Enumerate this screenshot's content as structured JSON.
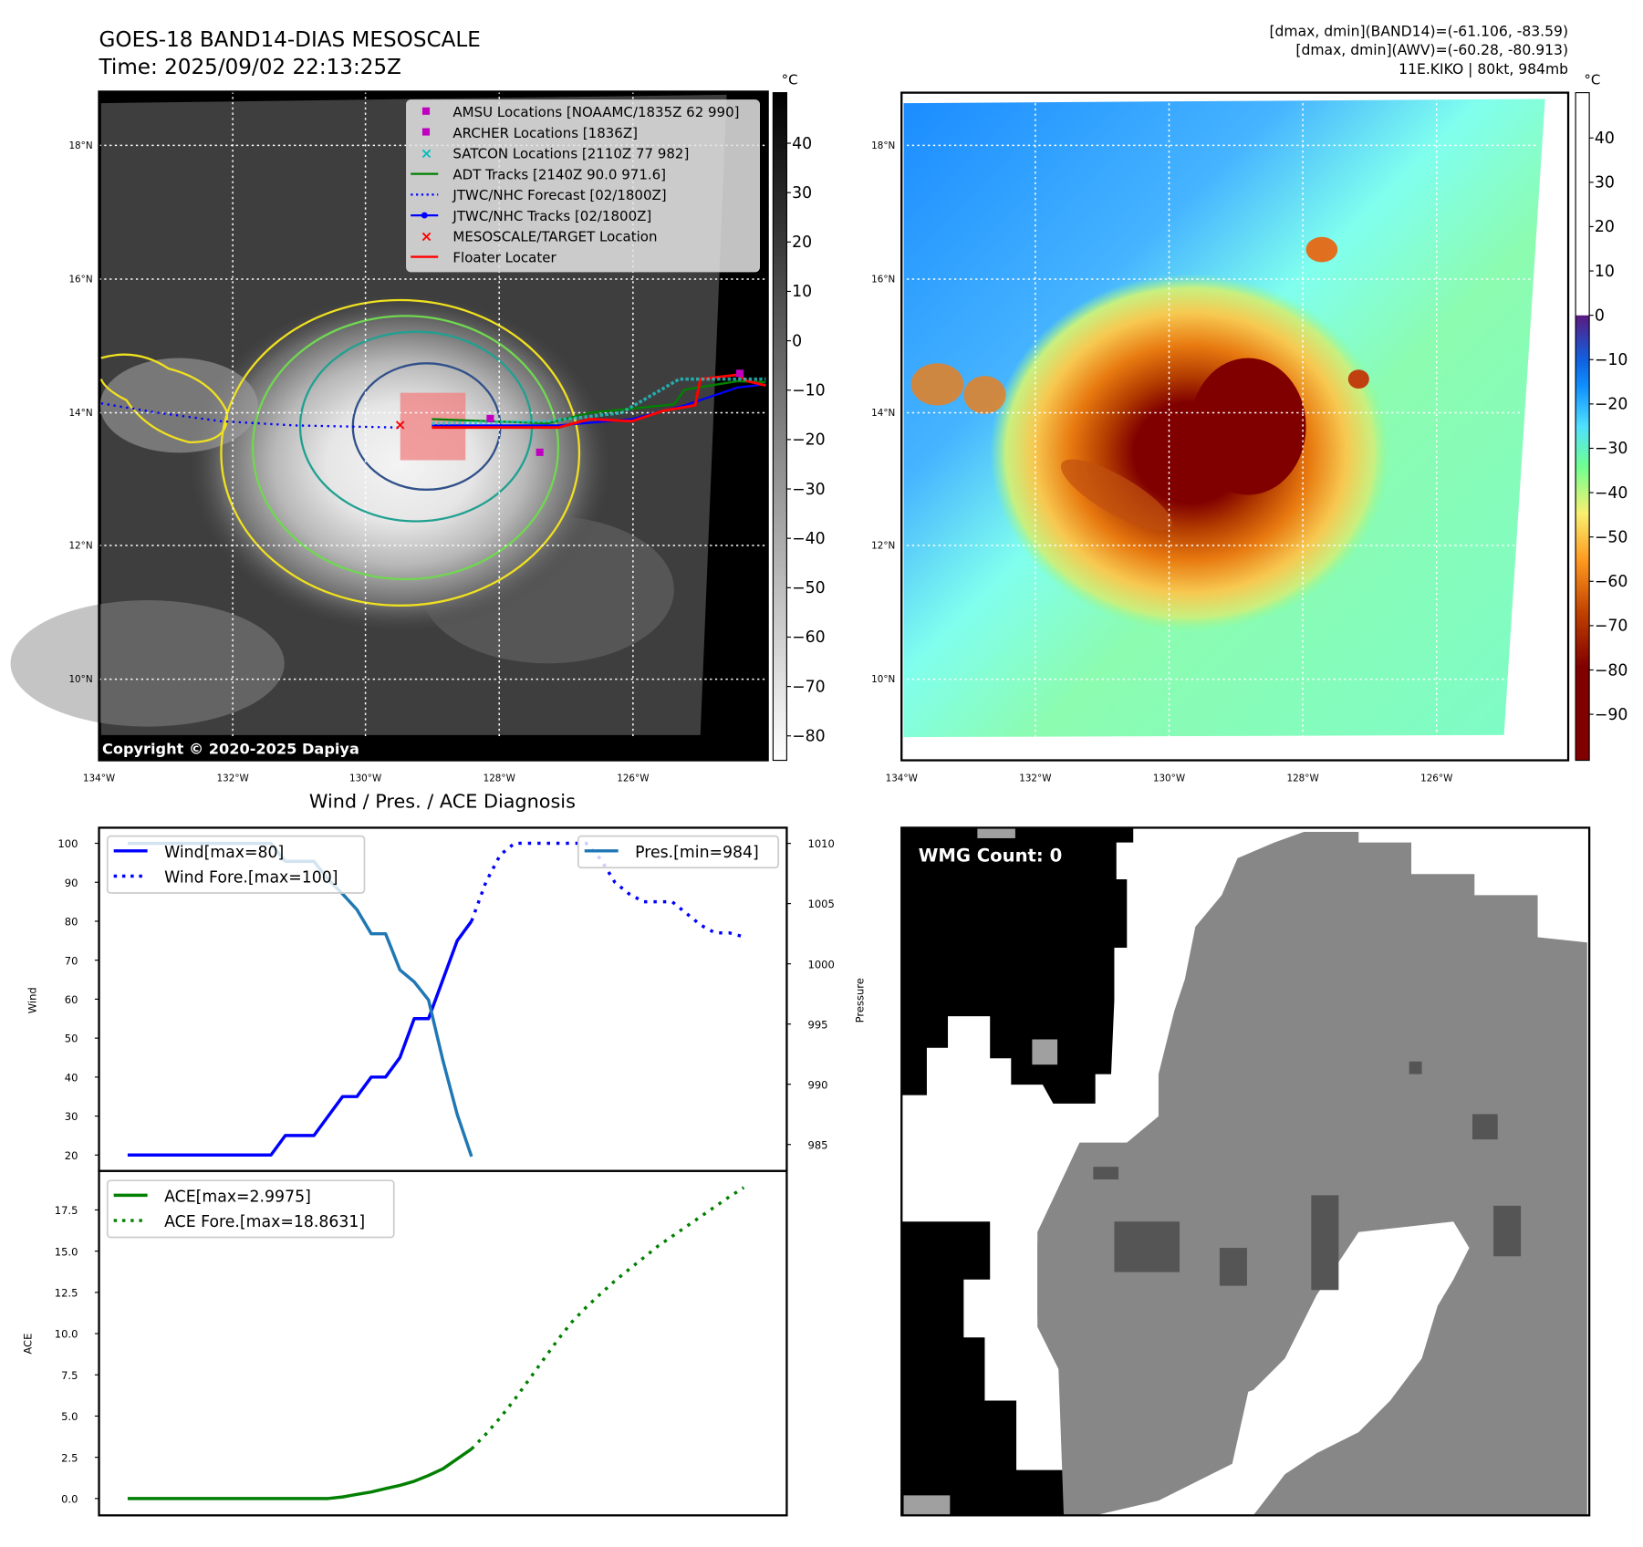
{
  "header": {
    "title_line1": "GOES-18 BAND14-DIAS MESOSCALE",
    "title_line2": "Time: 2025/09/02 22:13:25Z",
    "info_line1": "[dmax, dmin](BAND14)=(-61.106, -83.59)",
    "info_line2": "[dmax, dmin](AWV)=(-60.28, -80.913)",
    "info_line3": "11E.KIKO | 80kt, 984mb"
  },
  "maps": {
    "lat_labels": [
      "18°N",
      "16°N",
      "14°N",
      "12°N",
      "10°N"
    ],
    "lon_labels": [
      "134°W",
      "132°W",
      "130°W",
      "128°W",
      "126°W"
    ],
    "copyright": "Copyright © 2020-2025 Dapiya",
    "unit": "°C",
    "left_colorbar_ticks": [
      "40",
      "30",
      "20",
      "10",
      "0",
      "−10",
      "−20",
      "−30",
      "−40",
      "−50",
      "−60",
      "−70",
      "−80"
    ],
    "right_colorbar_ticks": [
      "40",
      "30",
      "20",
      "10",
      "0",
      "−10",
      "−20",
      "−30",
      "−40",
      "−50",
      "−60",
      "−70",
      "−80",
      "−90"
    ],
    "legend": [
      {
        "label": "AMSU Locations [NOAAMC/1835Z 62 990]",
        "color": "#c000c0",
        "marker": "square"
      },
      {
        "label": "ARCHER Locations [1836Z]",
        "color": "#c000c0",
        "marker": "square"
      },
      {
        "label": "SATCON Locations [2110Z 77 982]",
        "color": "#00c0c0",
        "marker": "x"
      },
      {
        "label": "ADT Tracks [2140Z 90.0 971.6]",
        "color": "#008000",
        "marker": "line"
      },
      {
        "label": "JTWC/NHC Forecast [02/1800Z]",
        "color": "#0000ff",
        "marker": "dotted"
      },
      {
        "label": "JTWC/NHC Tracks [02/1800Z]",
        "color": "#0000ff",
        "marker": "line-dot"
      },
      {
        "label": "MESOSCALE/TARGET Location",
        "color": "#ff0000",
        "marker": "x"
      },
      {
        "label": "Floater Locater",
        "color": "#ff0000",
        "marker": "line"
      }
    ]
  },
  "wmg": {
    "label": "WMG Count: 0"
  },
  "chart_data": [
    {
      "type": "line",
      "title": "Wind / Pres. / ACE Diagnosis",
      "ylabel": "Wind",
      "ylabel_right": "Pressure",
      "ylim": [
        15.9,
        104
      ],
      "ylim_right": [
        982.8,
        1011.3
      ],
      "xlim": [
        -2,
        46
      ],
      "yticks": [
        20,
        30,
        40,
        50,
        60,
        70,
        80,
        90,
        100
      ],
      "yticks_right": [
        985,
        990,
        995,
        1000,
        1005,
        1010
      ],
      "series": [
        {
          "name": "Wind[max=80]",
          "axis": "left",
          "color": "#0000ff",
          "style": "solid",
          "x": [
            0,
            1,
            2,
            3,
            4,
            5,
            6,
            7,
            8,
            9,
            10,
            11,
            12,
            13,
            14,
            15,
            16,
            17,
            18,
            19,
            20,
            21,
            22,
            23,
            24
          ],
          "values": [
            20,
            20,
            20,
            20,
            20,
            20,
            20,
            20,
            20,
            20,
            20,
            25,
            25,
            25,
            30,
            35,
            35,
            40,
            40,
            45,
            55,
            55,
            65,
            75,
            80
          ]
        },
        {
          "name": "Wind Fore.[max=100]",
          "axis": "left",
          "color": "#0000ff",
          "style": "dotted",
          "x": [
            24,
            25,
            26,
            27,
            28,
            29,
            30,
            31,
            32,
            33,
            34,
            35,
            36,
            37,
            38,
            39,
            40,
            41,
            42,
            43
          ],
          "values": [
            80,
            90,
            97,
            100,
            100,
            100,
            100,
            100,
            100,
            96,
            90,
            87,
            85,
            85,
            85,
            82,
            79,
            77,
            77,
            76
          ]
        },
        {
          "name": "Pres.[min=984]",
          "axis": "right",
          "color": "#1f77b4",
          "style": "solid",
          "x": [
            0,
            1,
            2,
            3,
            4,
            5,
            6,
            7,
            8,
            9,
            10,
            11,
            12,
            13,
            14,
            15,
            16,
            17,
            18,
            19,
            20,
            21,
            22,
            23,
            24
          ],
          "values": [
            1010,
            1010,
            1010,
            1010,
            1010,
            1010,
            1010,
            1010,
            1010,
            1010,
            1010,
            1008.5,
            1008.5,
            1008.5,
            1007,
            1005.8,
            1004.5,
            1002.5,
            1002.5,
            999.5,
            998.5,
            997,
            992,
            987.5,
            984
          ]
        }
      ]
    },
    {
      "type": "line",
      "title": "",
      "ylabel": "ACE",
      "ylim": [
        -1.02,
        19.86
      ],
      "xlim": [
        -2,
        46
      ],
      "yticks": [
        0.0,
        2.5,
        5.0,
        7.5,
        10.0,
        12.5,
        15.0,
        17.5
      ],
      "ytick_labels": [
        "0.0",
        "2.5",
        "5.0",
        "7.5",
        "10.0",
        "12.5",
        "15.0",
        "17.5"
      ],
      "series": [
        {
          "name": "ACE[max=2.9975]",
          "color": "#008000",
          "style": "solid",
          "x": [
            0,
            2,
            4,
            6,
            8,
            10,
            12,
            14,
            15,
            16,
            17,
            18,
            19,
            20,
            21,
            22,
            23,
            24
          ],
          "values": [
            0,
            0,
            0,
            0,
            0,
            0,
            0,
            0,
            0.1,
            0.25,
            0.4,
            0.6,
            0.8,
            1.05,
            1.4,
            1.8,
            2.4,
            3.0
          ]
        },
        {
          "name": "ACE Fore.[max=18.8631]",
          "color": "#008000",
          "style": "dotted",
          "x": [
            24,
            25,
            26,
            27,
            28,
            29,
            30,
            31,
            32,
            33,
            34,
            35,
            36,
            37,
            38,
            39,
            40,
            41,
            42,
            43
          ],
          "values": [
            3.0,
            3.9,
            4.9,
            6.0,
            7.2,
            8.4,
            9.6,
            10.7,
            11.6,
            12.4,
            13.2,
            13.9,
            14.6,
            15.3,
            15.9,
            16.5,
            17.1,
            17.7,
            18.3,
            18.86
          ]
        }
      ]
    }
  ]
}
